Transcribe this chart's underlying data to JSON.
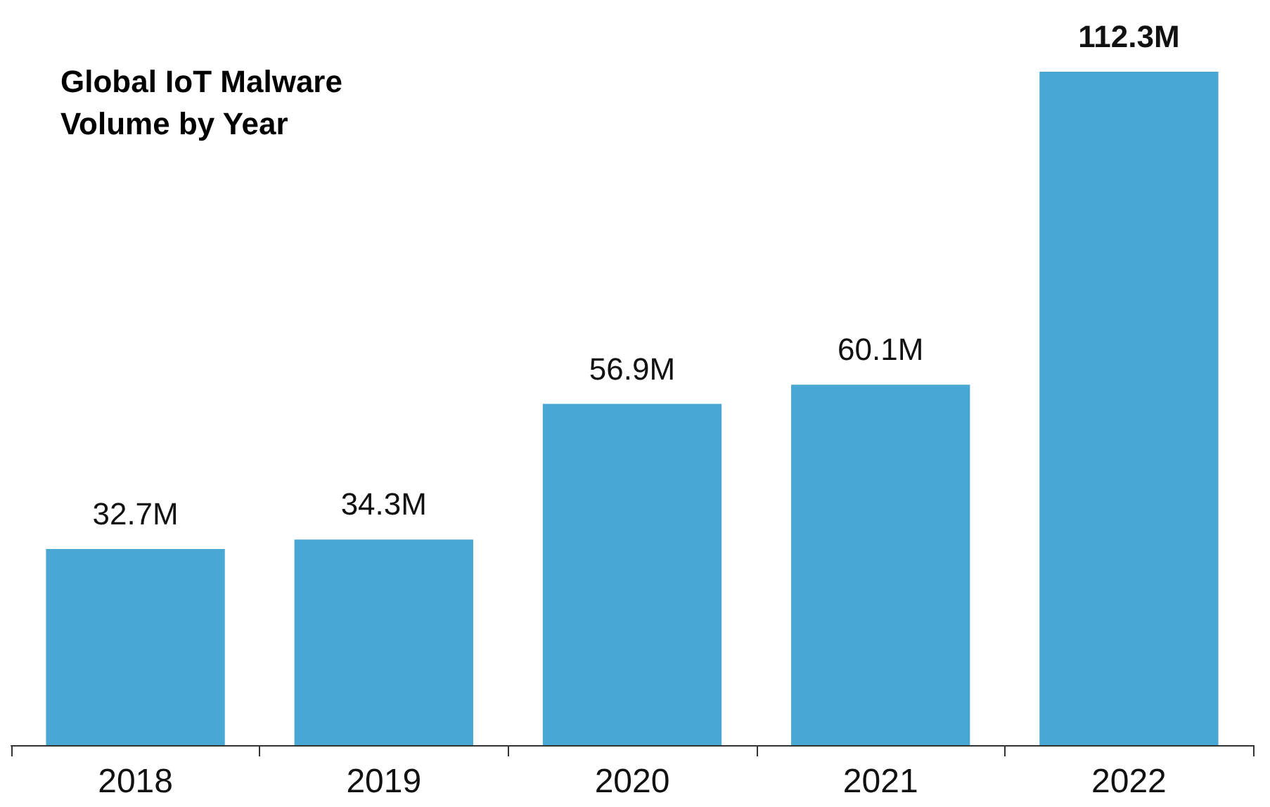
{
  "chart_data": {
    "type": "bar",
    "title": "Global IoT Malware Volume by Year",
    "categories": [
      "2018",
      "2019",
      "2020",
      "2021",
      "2022"
    ],
    "values": [
      32.7,
      34.3,
      56.9,
      60.1,
      112.3
    ],
    "value_labels": [
      "32.7M",
      "34.3M",
      "56.9M",
      "60.1M",
      "112.3M"
    ],
    "color": "#49a7d3"
  }
}
